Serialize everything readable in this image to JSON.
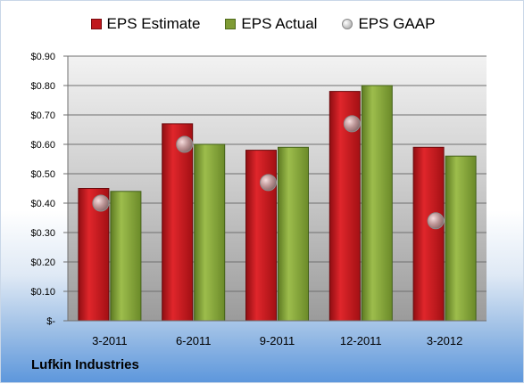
{
  "chart_data": {
    "type": "bar",
    "categories": [
      "3-2011",
      "6-2011",
      "9-2011",
      "12-2011",
      "3-2012"
    ],
    "series": [
      {
        "name": "EPS Estimate",
        "kind": "bar",
        "color": "#c0171c",
        "values": [
          0.45,
          0.67,
          0.58,
          0.78,
          0.59
        ]
      },
      {
        "name": "EPS Actual",
        "kind": "bar",
        "color": "#7f9c35",
        "values": [
          0.44,
          0.6,
          0.59,
          0.8,
          0.56
        ]
      },
      {
        "name": "EPS GAAP",
        "kind": "marker",
        "color": "#a8a8a8",
        "values": [
          0.4,
          0.6,
          0.47,
          0.67,
          0.34
        ]
      }
    ],
    "ylim": [
      0,
      0.9
    ],
    "yticks": [
      0,
      0.1,
      0.2,
      0.3,
      0.4,
      0.5,
      0.6,
      0.7,
      0.8,
      0.9
    ],
    "ytick_labels": [
      "$-",
      "$0.10",
      "$0.20",
      "$0.30",
      "$0.40",
      "$0.50",
      "$0.60",
      "$0.70",
      "$0.80",
      "$0.90"
    ],
    "grid": true,
    "legend_position": "top-center"
  },
  "footer": {
    "company": "Lufkin Industries"
  }
}
